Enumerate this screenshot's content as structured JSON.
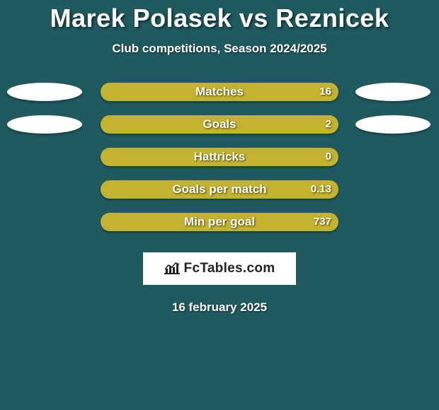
{
  "colors": {
    "background": "#1f5a5f",
    "bar_track": "#a89a2e",
    "bar_fill": "#c3b32e",
    "ellipse": "#ffffff",
    "text": "#ffffff",
    "badge_bg": "#ffffff",
    "badge_text": "#222222"
  },
  "title": "Marek Polasek vs Reznicek",
  "subtitle": "Club competitions, Season 2024/2025",
  "stats": [
    {
      "label": "Matches",
      "value": "16",
      "show_left": true,
      "show_right": true,
      "fill_pct": 100
    },
    {
      "label": "Goals",
      "value": "2",
      "show_left": true,
      "show_right": true,
      "fill_pct": 100
    },
    {
      "label": "Hattricks",
      "value": "0",
      "show_left": false,
      "show_right": false,
      "fill_pct": 100
    },
    {
      "label": "Goals per match",
      "value": "0.13",
      "show_left": false,
      "show_right": false,
      "fill_pct": 100
    },
    {
      "label": "Min per goal",
      "value": "737",
      "show_left": false,
      "show_right": false,
      "fill_pct": 100
    }
  ],
  "badge": {
    "text": "FcTables.com"
  },
  "date": "16 february 2025"
}
